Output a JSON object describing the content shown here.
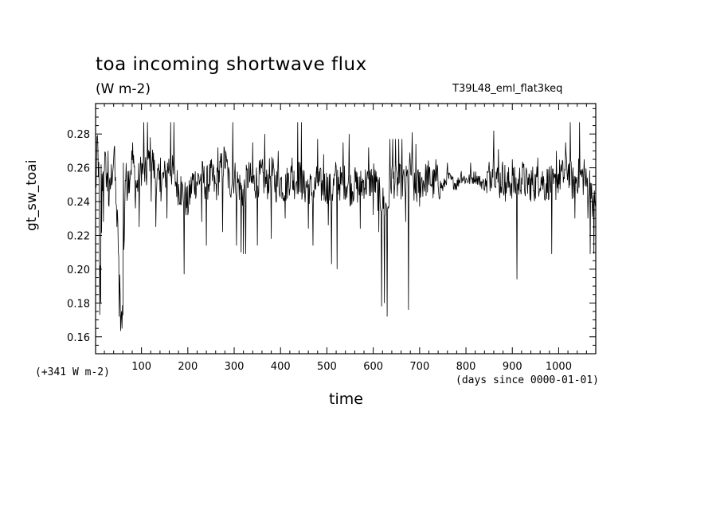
{
  "chart_data": {
    "type": "line",
    "title": "toa incoming shortwave flux",
    "units": "(W m-2)",
    "run_label": "T39L48_eml_flat3keq",
    "ylabel": "gt_sw_toai",
    "xlabel": "time",
    "y_offset_label": "(+341 W m-2)",
    "x_units_label": "(days since 0000-01-01)",
    "xlim": [
      1,
      1080
    ],
    "ylim": [
      0.15,
      0.298
    ],
    "x_ticks": [
      100,
      200,
      300,
      400,
      500,
      600,
      700,
      800,
      900,
      1000
    ],
    "x_tick_labels": [
      "100",
      "200",
      "300",
      "400",
      "500",
      "600",
      "700",
      "800",
      "900",
      "1000"
    ],
    "y_ticks": [
      0.16,
      0.18,
      0.2,
      0.22,
      0.24,
      0.26,
      0.28
    ],
    "y_tick_labels": [
      "0.16",
      "0.18",
      "0.20",
      "0.22",
      "0.24",
      "0.26",
      "0.28"
    ],
    "grid": false,
    "series": [
      {
        "values_note_free": true,
        "anchors_x": [
          1,
          5,
          8,
          12,
          15,
          20,
          25,
          30,
          35,
          40,
          45,
          50,
          55,
          60,
          65,
          70,
          80,
          90,
          100,
          110,
          120,
          130,
          140,
          150,
          160,
          170,
          180,
          190,
          200,
          210,
          220,
          230,
          240,
          250,
          260,
          270,
          280,
          290,
          300,
          310,
          320,
          330,
          340,
          350,
          360,
          370,
          380,
          390,
          400,
          410,
          420,
          430,
          440,
          450,
          460,
          470,
          480,
          490,
          500,
          510,
          520,
          530,
          540,
          550,
          560,
          570,
          580,
          590,
          600,
          610,
          620,
          630,
          640,
          650,
          660,
          670,
          680,
          690,
          700,
          710,
          720,
          730,
          740,
          750,
          760,
          770,
          780,
          790,
          800,
          810,
          820,
          830,
          840,
          850,
          860,
          870,
          880,
          890,
          900,
          910,
          920,
          930,
          940,
          950,
          960,
          970,
          980,
          990,
          1000,
          1010,
          1020,
          1030,
          1040,
          1050,
          1060,
          1070,
          1075,
          1080
        ],
        "anchors_y": [
          0.245,
          0.275,
          0.255,
          0.175,
          0.25,
          0.265,
          0.255,
          0.24,
          0.255,
          0.265,
          0.245,
          0.215,
          0.172,
          0.175,
          0.255,
          0.25,
          0.265,
          0.248,
          0.26,
          0.255,
          0.27,
          0.255,
          0.25,
          0.255,
          0.262,
          0.255,
          0.248,
          0.245,
          0.238,
          0.252,
          0.252,
          0.255,
          0.25,
          0.255,
          0.248,
          0.258,
          0.265,
          0.25,
          0.255,
          0.25,
          0.245,
          0.255,
          0.25,
          0.253,
          0.255,
          0.25,
          0.258,
          0.25,
          0.252,
          0.248,
          0.255,
          0.252,
          0.255,
          0.248,
          0.25,
          0.245,
          0.252,
          0.248,
          0.25,
          0.245,
          0.255,
          0.25,
          0.252,
          0.248,
          0.25,
          0.248,
          0.252,
          0.25,
          0.255,
          0.245,
          0.24,
          0.235,
          0.255,
          0.25,
          0.252,
          0.25,
          0.26,
          0.245,
          0.252,
          0.252,
          0.255,
          0.25,
          0.252,
          0.248,
          0.255,
          0.252,
          0.25,
          0.255,
          0.253,
          0.253,
          0.255,
          0.252,
          0.25,
          0.255,
          0.262,
          0.25,
          0.255,
          0.25,
          0.252,
          0.248,
          0.255,
          0.25,
          0.252,
          0.25,
          0.255,
          0.25,
          0.252,
          0.248,
          0.255,
          0.255,
          0.26,
          0.25,
          0.255,
          0.255,
          0.25,
          0.252,
          0.235,
          0.245
        ]
      }
    ],
    "spikes": [
      {
        "x": 10,
        "y": 0.173
      },
      {
        "x": 13,
        "y": 0.262
      },
      {
        "x": 18,
        "y": 0.228
      },
      {
        "x": 28,
        "y": 0.27
      },
      {
        "x": 42,
        "y": 0.273
      },
      {
        "x": 47,
        "y": 0.225
      },
      {
        "x": 52,
        "y": 0.172
      },
      {
        "x": 56,
        "y": 0.172
      },
      {
        "x": 61,
        "y": 0.263
      },
      {
        "x": 71,
        "y": 0.258
      },
      {
        "x": 81,
        "y": 0.275
      },
      {
        "x": 87,
        "y": 0.236
      },
      {
        "x": 95,
        "y": 0.225
      },
      {
        "x": 105,
        "y": 0.287
      },
      {
        "x": 113,
        "y": 0.287
      },
      {
        "x": 121,
        "y": 0.24
      },
      {
        "x": 131,
        "y": 0.225
      },
      {
        "x": 141,
        "y": 0.266
      },
      {
        "x": 155,
        "y": 0.23
      },
      {
        "x": 163,
        "y": 0.287
      },
      {
        "x": 170,
        "y": 0.287
      },
      {
        "x": 185,
        "y": 0.255
      },
      {
        "x": 192,
        "y": 0.197
      },
      {
        "x": 230,
        "y": 0.228
      },
      {
        "x": 240,
        "y": 0.214
      },
      {
        "x": 255,
        "y": 0.262
      },
      {
        "x": 265,
        "y": 0.272
      },
      {
        "x": 275,
        "y": 0.222
      },
      {
        "x": 285,
        "y": 0.265
      },
      {
        "x": 297,
        "y": 0.287
      },
      {
        "x": 305,
        "y": 0.214
      },
      {
        "x": 315,
        "y": 0.21
      },
      {
        "x": 320,
        "y": 0.209
      },
      {
        "x": 325,
        "y": 0.209
      },
      {
        "x": 340,
        "y": 0.275
      },
      {
        "x": 350,
        "y": 0.214
      },
      {
        "x": 366,
        "y": 0.28
      },
      {
        "x": 380,
        "y": 0.218
      },
      {
        "x": 395,
        "y": 0.27
      },
      {
        "x": 410,
        "y": 0.23
      },
      {
        "x": 425,
        "y": 0.266
      },
      {
        "x": 437,
        "y": 0.287
      },
      {
        "x": 445,
        "y": 0.287
      },
      {
        "x": 460,
        "y": 0.224
      },
      {
        "x": 470,
        "y": 0.214
      },
      {
        "x": 480,
        "y": 0.277
      },
      {
        "x": 493,
        "y": 0.268
      },
      {
        "x": 503,
        "y": 0.226
      },
      {
        "x": 510,
        "y": 0.203
      },
      {
        "x": 522,
        "y": 0.2
      },
      {
        "x": 535,
        "y": 0.275
      },
      {
        "x": 548,
        "y": 0.28
      },
      {
        "x": 560,
        "y": 0.258
      },
      {
        "x": 572,
        "y": 0.224
      },
      {
        "x": 590,
        "y": 0.272
      },
      {
        "x": 600,
        "y": 0.232
      },
      {
        "x": 612,
        "y": 0.222
      },
      {
        "x": 618,
        "y": 0.178
      },
      {
        "x": 624,
        "y": 0.18
      },
      {
        "x": 630,
        "y": 0.172
      },
      {
        "x": 636,
        "y": 0.277
      },
      {
        "x": 642,
        "y": 0.277
      },
      {
        "x": 648,
        "y": 0.277
      },
      {
        "x": 655,
        "y": 0.277
      },
      {
        "x": 662,
        "y": 0.277
      },
      {
        "x": 670,
        "y": 0.228
      },
      {
        "x": 676,
        "y": 0.176
      },
      {
        "x": 684,
        "y": 0.281
      },
      {
        "x": 692,
        "y": 0.274
      },
      {
        "x": 700,
        "y": 0.237
      },
      {
        "x": 720,
        "y": 0.25
      },
      {
        "x": 735,
        "y": 0.265
      },
      {
        "x": 760,
        "y": 0.263
      },
      {
        "x": 790,
        "y": 0.258
      },
      {
        "x": 810,
        "y": 0.263
      },
      {
        "x": 845,
        "y": 0.245
      },
      {
        "x": 860,
        "y": 0.282
      },
      {
        "x": 870,
        "y": 0.271
      },
      {
        "x": 885,
        "y": 0.24
      },
      {
        "x": 900,
        "y": 0.265
      },
      {
        "x": 910,
        "y": 0.194
      },
      {
        "x": 925,
        "y": 0.262
      },
      {
        "x": 940,
        "y": 0.24
      },
      {
        "x": 955,
        "y": 0.266
      },
      {
        "x": 970,
        "y": 0.241
      },
      {
        "x": 985,
        "y": 0.209
      },
      {
        "x": 995,
        "y": 0.27
      },
      {
        "x": 1005,
        "y": 0.262
      },
      {
        "x": 1015,
        "y": 0.275
      },
      {
        "x": 1025,
        "y": 0.287
      },
      {
        "x": 1035,
        "y": 0.23
      },
      {
        "x": 1045,
        "y": 0.287
      },
      {
        "x": 1055,
        "y": 0.265
      },
      {
        "x": 1063,
        "y": 0.23
      },
      {
        "x": 1068,
        "y": 0.209
      },
      {
        "x": 1072,
        "y": 0.24
      },
      {
        "x": 1076,
        "y": 0.209
      }
    ]
  }
}
